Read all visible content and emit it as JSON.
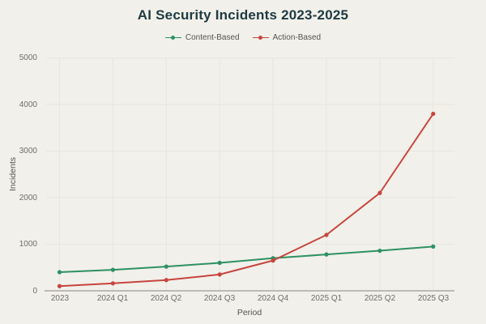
{
  "theme": {
    "background": "#f1f0ea",
    "title_color": "#1e3a42",
    "grid_color": "#e7e6df",
    "axis_line_color": "#9c9b96",
    "tick_label_color": "#6f6e68",
    "axis_title_color": "#55534d"
  },
  "chart_data": {
    "type": "line",
    "title": "AI Security Incidents 2023-2025",
    "xlabel": "Period",
    "ylabel": "Incidents",
    "categories": [
      "2023",
      "2024 Q1",
      "2024 Q2",
      "2024 Q3",
      "2024 Q4",
      "2025 Q1",
      "2025 Q2",
      "2025 Q3"
    ],
    "series": [
      {
        "name": "Content-Based",
        "color": "#2d9162",
        "values": [
          400,
          450,
          520,
          600,
          700,
          780,
          860,
          950
        ]
      },
      {
        "name": "Action-Based",
        "color": "#c8443e",
        "values": [
          100,
          160,
          230,
          350,
          650,
          1200,
          2100,
          3800
        ]
      }
    ],
    "ylim": [
      0,
      5000
    ],
    "ytick_step": 1000,
    "y_ticks_top_to_bottom": [
      "5000",
      "4000",
      "3000",
      "2000",
      "1000",
      "0"
    ],
    "grid": true,
    "legend_position": "top",
    "marker": "dot"
  }
}
